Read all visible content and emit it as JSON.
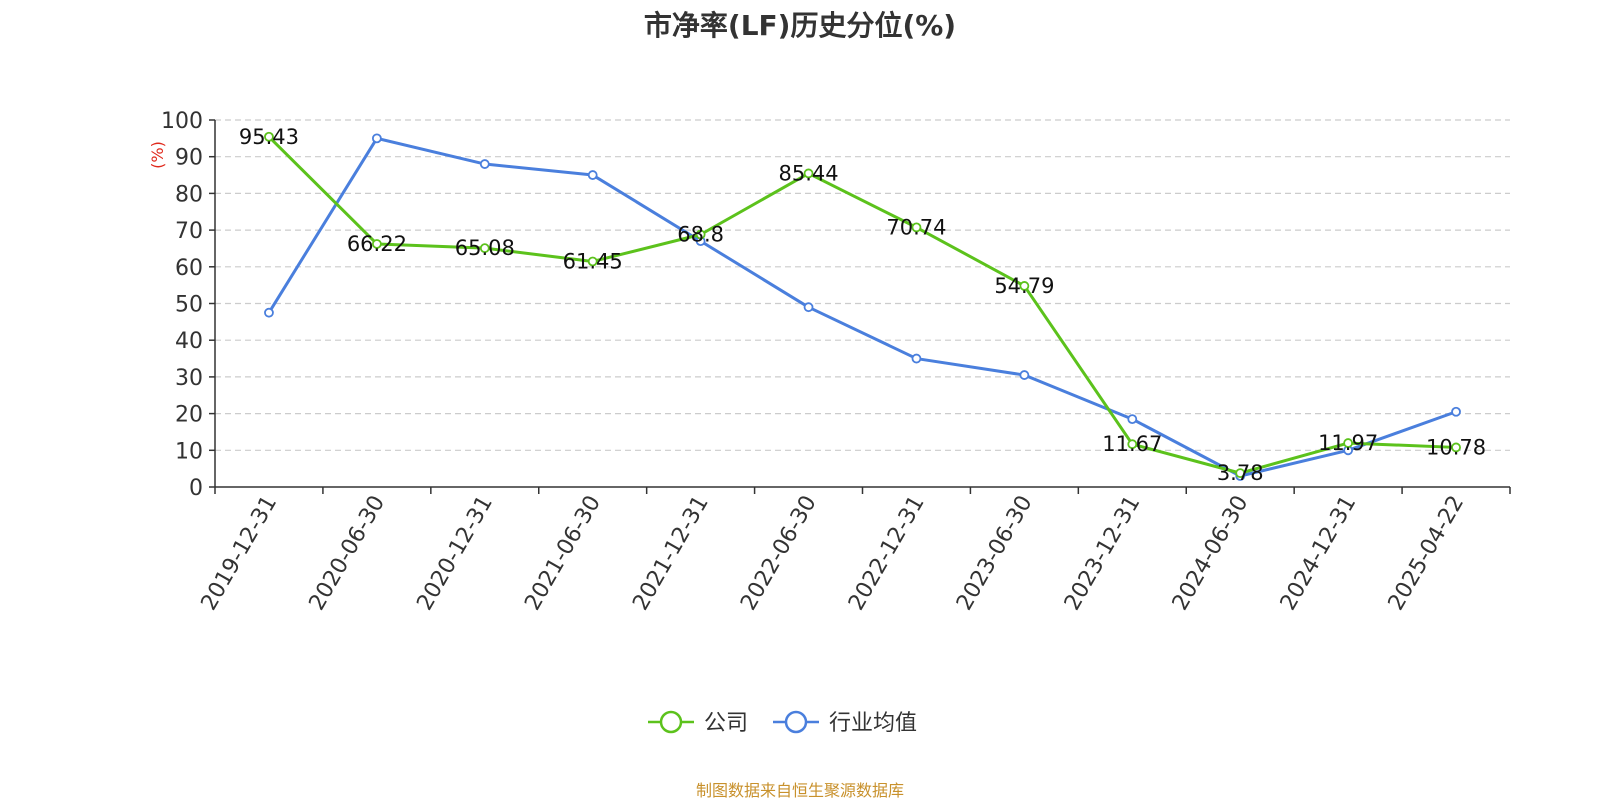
{
  "chart_data": {
    "type": "line",
    "title": "市净率(LF)历史分位(%)",
    "ylabel": "(%)",
    "ylim": [
      0,
      100
    ],
    "yticks": [
      0,
      10,
      20,
      30,
      40,
      50,
      60,
      70,
      80,
      90,
      100
    ],
    "grid": true,
    "legend_position": "bottom-center",
    "categories": [
      "2019-12-31",
      "2020-06-30",
      "2020-12-31",
      "2021-06-30",
      "2021-12-31",
      "2022-06-30",
      "2022-12-31",
      "2023-06-30",
      "2023-12-31",
      "2024-06-30",
      "2024-12-31",
      "2025-04-22"
    ],
    "series": [
      {
        "name": "公司",
        "color": "#5cc21c",
        "values": [
          95.43,
          66.22,
          65.08,
          61.45,
          68.8,
          85.44,
          70.74,
          54.79,
          11.67,
          3.78,
          11.97,
          10.78
        ],
        "labels": [
          "95.43",
          "66.22",
          "65.08",
          "61.45",
          "68.8",
          "85.44",
          "70.74",
          "54.79",
          "11.67",
          "3.78",
          "11.97",
          "10.78"
        ]
      },
      {
        "name": "行业均值",
        "color": "#4a7fdd",
        "values": [
          47.5,
          95.0,
          88.0,
          85.0,
          67.0,
          49.0,
          35.0,
          30.5,
          18.5,
          3.0,
          10.0,
          20.5
        ]
      }
    ]
  },
  "source": "制图数据来自恒生聚源数据库"
}
